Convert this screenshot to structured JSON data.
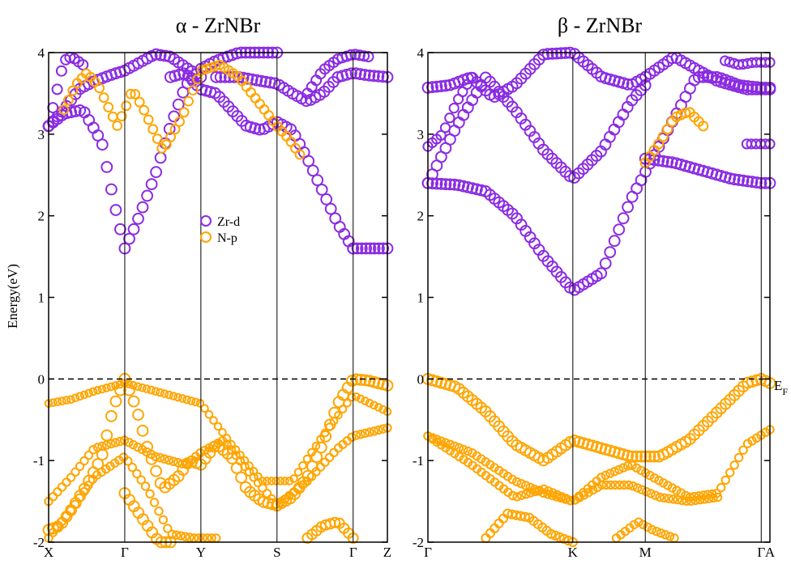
{
  "chart_data": [
    {
      "type": "scatter",
      "title": "α - ZrNBr",
      "ylabel": "Energy(eV)",
      "xlabel": "",
      "ylim": [
        -2,
        4
      ],
      "yticks": [
        -2,
        -1,
        0,
        1,
        2,
        3,
        4
      ],
      "fermi_level": 0,
      "grid": false,
      "kpath": [
        {
          "label": "X",
          "x": 0
        },
        {
          "label": "Γ",
          "x": 1
        },
        {
          "label": "Y",
          "x": 2
        },
        {
          "label": "S",
          "x": 3
        },
        {
          "label": "Γ",
          "x": 4
        },
        {
          "label": "Z",
          "x": 4.45
        }
      ],
      "legend": {
        "placement": "center",
        "entries": [
          {
            "label": "Zr-d",
            "color": "#8a2be2"
          },
          {
            "label": "N-p",
            "color": "#ffa500"
          }
        ]
      },
      "series": [
        {
          "name": "Zr-d",
          "color": "#8a2be2",
          "bands": [
            {
              "x": [
                0,
                0.2,
                0.45,
                0.7,
                0.85,
                1,
                1.15,
                1.4,
                1.6,
                1.8,
                2,
                2.2,
                2.5,
                2.8,
                3
              ],
              "y": [
                3.1,
                3.25,
                3.3,
                2.9,
                2.2,
                1.6,
                1.9,
                2.5,
                3.1,
                3.6,
                3.8,
                3.9,
                4.0,
                4.0,
                4.0
              ],
              "size": 1.0
            },
            {
              "x": [
                0,
                0.2,
                0.4,
                0.6,
                0.8,
                1,
                1.2,
                1.4,
                1.6,
                1.8,
                2
              ],
              "y": [
                3.1,
                3.3,
                3.55,
                3.65,
                3.72,
                3.78,
                3.88,
                3.98,
                3.95,
                3.82,
                3.7
              ],
              "size": 1.0
            },
            {
              "x": [
                1.6,
                1.8,
                2,
                2.2,
                2.4,
                2.6,
                2.8,
                3,
                3.2,
                3.4,
                3.6,
                3.8,
                4
              ],
              "y": [
                3.7,
                3.75,
                3.55,
                3.5,
                3.3,
                3.1,
                3.05,
                3.15,
                3.05,
                2.7,
                2.3,
                1.9,
                1.6
              ],
              "size": 1.0
            },
            {
              "x": [
                4,
                4.2,
                4.45
              ],
              "y": [
                1.6,
                1.6,
                1.6
              ],
              "size": 1.0
            },
            {
              "x": [
                2.2,
                2.5,
                2.8,
                3,
                3.2,
                3.4,
                3.6,
                3.8,
                4,
                4.2,
                4.45
              ],
              "y": [
                3.7,
                3.7,
                3.65,
                3.62,
                3.5,
                3.4,
                3.5,
                3.7,
                3.75,
                3.72,
                3.7
              ],
              "size": 1.0
            },
            {
              "x": [
                0,
                0.1,
                0.2,
                0.3,
                0.45
              ],
              "y": [
                3.1,
                3.5,
                3.9,
                3.95,
                3.85
              ],
              "size": 0.9
            },
            {
              "x": [
                3.4,
                3.6,
                3.8,
                4,
                4.2
              ],
              "y": [
                3.5,
                3.78,
                3.92,
                3.98,
                3.95
              ],
              "size": 0.9
            }
          ]
        },
        {
          "name": "N-p",
          "color": "#ffa500",
          "bands": [
            {
              "x": [
                0.2,
                0.35,
                0.5,
                0.65,
                0.8,
                0.9,
                1,
                1.1,
                1.25,
                1.5,
                1.75,
                2,
                2.25,
                2.5,
                2.75,
                3,
                3.15,
                3.3
              ],
              "y": [
                3.3,
                3.6,
                3.75,
                3.6,
                3.3,
                3.1,
                3.3,
                3.55,
                3.3,
                2.8,
                3.2,
                3.78,
                3.85,
                3.7,
                3.4,
                3.1,
                2.95,
                2.75
              ],
              "size": 0.75
            },
            {
              "x": [
                0,
                0.15,
                0.3,
                0.5,
                0.7,
                0.85,
                1,
                1.15,
                1.3,
                1.5,
                1.7,
                1.85,
                2,
                2.2,
                2.4,
                2.6,
                2.8,
                3
              ],
              "y": [
                -1.85,
                -1.8,
                -1.6,
                -1.3,
                -0.95,
                -0.35,
                0,
                -0.35,
                -0.85,
                -1.35,
                -1.2,
                -1.0,
                -1.05,
                -0.8,
                -0.95,
                -1.35,
                -1.5,
                -1.55
              ],
              "size": 1.0
            },
            {
              "x": [
                3,
                3.2,
                3.4,
                3.6,
                3.8,
                4,
                4.2,
                4.45
              ],
              "y": [
                -1.55,
                -1.45,
                -1.2,
                -0.8,
                -0.3,
                0,
                -0.02,
                -0.08
              ],
              "size": 1.0
            },
            {
              "x": [
                0,
                0.3,
                0.6,
                1,
                1.4,
                1.8,
                2,
                2.4,
                2.8,
                3.2,
                3.6,
                4,
                4.45
              ],
              "y": [
                -0.3,
                -0.25,
                -0.15,
                -0.05,
                -0.15,
                -0.25,
                -0.3,
                -0.8,
                -1.25,
                -1.25,
                -0.7,
                -0.2,
                -0.4
              ],
              "size": 0.5
            },
            {
              "x": [
                0,
                0.3,
                0.6,
                1,
                1.4,
                1.8,
                2,
                2.3,
                2.6,
                3,
                3.4,
                3.8,
                4,
                4.45
              ],
              "y": [
                -1.5,
                -1.2,
                -0.85,
                -0.75,
                -0.95,
                -1.05,
                -0.9,
                -0.75,
                -1.1,
                -1.55,
                -1.25,
                -0.85,
                -0.7,
                -0.6
              ],
              "size": 0.6
            },
            {
              "x": [
                0,
                0.3,
                0.6,
                1,
                1.3,
                1.6,
                1.9,
                2.2
              ],
              "y": [
                -1.95,
                -1.6,
                -1.2,
                -0.95,
                -1.35,
                -1.9,
                -1.95,
                -1.95
              ],
              "size": 0.6
            },
            {
              "x": [
                1,
                1.15,
                1.3,
                1.45,
                1.6
              ],
              "y": [
                -1.4,
                -1.6,
                -1.8,
                -2.0,
                -2.0
              ],
              "size": 1.0
            },
            {
              "x": [
                3.4,
                3.6,
                3.8,
                4
              ],
              "y": [
                -1.95,
                -1.8,
                -1.75,
                -1.95
              ],
              "size": 0.9
            }
          ]
        }
      ]
    },
    {
      "type": "scatter",
      "title": "β - ZrNBr",
      "ylabel": "",
      "xlabel": "",
      "ylim": [
        -2,
        4
      ],
      "yticks": [
        -2,
        -1,
        0,
        1,
        2,
        3,
        4
      ],
      "fermi_level": 0,
      "fermi_label": "E_F",
      "grid": false,
      "kpath": [
        {
          "label": "Γ",
          "x": 0
        },
        {
          "label": "K",
          "x": 1
        },
        {
          "label": "M",
          "x": 1.5
        },
        {
          "label": "Γ",
          "x": 2.3
        },
        {
          "label": "A",
          "x": 2.36
        }
      ],
      "series": [
        {
          "name": "Zr-d",
          "color": "#8a2be2",
          "bands": [
            {
              "x": [
                0,
                0.2,
                0.4,
                0.6,
                0.8,
                1,
                1.2,
                1.4,
                1.55,
                1.7,
                1.85,
                2,
                2.15,
                2.3,
                2.36
              ],
              "y": [
                2.4,
                2.38,
                2.3,
                2.0,
                1.5,
                1.08,
                1.3,
                2.2,
                2.7,
                3.2,
                3.7,
                3.7,
                3.6,
                3.57,
                3.57
              ],
              "size": 1.0
            },
            {
              "x": [
                0,
                0.2,
                0.4,
                0.6,
                0.8,
                1,
                1.2,
                1.4,
                1.5
              ],
              "y": [
                2.4,
                3.1,
                3.7,
                3.3,
                2.8,
                2.45,
                2.8,
                3.4,
                3.6
              ],
              "size": 1.0
            },
            {
              "x": [
                0,
                0.15,
                0.3,
                0.45,
                0.6,
                0.8,
                1,
                1.2,
                1.4,
                1.5,
                1.7,
                2,
                2.2,
                2.36
              ],
              "y": [
                3.57,
                3.6,
                3.7,
                3.45,
                3.6,
                3.98,
                4.0,
                3.7,
                3.6,
                3.7,
                3.95,
                3.65,
                3.55,
                3.55
              ],
              "size": 1.0
            },
            {
              "x": [
                1.5,
                1.7,
                1.9,
                2.1,
                2.3,
                2.36
              ],
              "y": [
                2.7,
                2.65,
                2.55,
                2.45,
                2.4,
                2.4
              ],
              "size": 1.0
            },
            {
              "x": [
                0,
                0.1,
                0.2,
                0.3
              ],
              "y": [
                2.85,
                3.0,
                3.4,
                3.7
              ],
              "size": 0.8
            },
            {
              "x": [
                2.05,
                2.15,
                2.25,
                2.36
              ],
              "y": [
                3.9,
                3.85,
                3.88,
                3.88
              ],
              "size": 0.8
            },
            {
              "x": [
                2.2,
                2.3,
                2.36
              ],
              "y": [
                2.88,
                2.88,
                2.88
              ],
              "size": 0.8
            }
          ]
        },
        {
          "name": "N-p",
          "color": "#ffa500",
          "bands": [
            {
              "x": [
                0,
                0.2,
                0.4,
                0.6,
                0.8,
                1,
                1.2,
                1.4,
                1.6,
                1.8,
                2,
                2.2,
                2.3,
                2.36
              ],
              "y": [
                0,
                -0.1,
                -0.4,
                -0.8,
                -1.0,
                -0.75,
                -0.85,
                -0.95,
                -0.95,
                -0.75,
                -0.4,
                -0.05,
                0,
                -0.05
              ],
              "size": 1.0
            },
            {
              "x": [
                1.5,
                1.6,
                1.7,
                1.8,
                1.9
              ],
              "y": [
                2.65,
                2.9,
                3.2,
                3.28,
                3.1
              ],
              "size": 0.8
            },
            {
              "x": [
                0,
                0.3,
                0.6,
                0.8,
                1,
                1.2,
                1.4,
                1.6,
                1.8,
                2,
                2.2,
                2.36
              ],
              "y": [
                -0.7,
                -0.9,
                -1.25,
                -1.4,
                -1.5,
                -1.2,
                -1.05,
                -1.25,
                -1.45,
                -1.4,
                -0.8,
                -0.62
              ],
              "size": 0.6
            },
            {
              "x": [
                0,
                0.3,
                0.6,
                0.8,
                1,
                1.2,
                1.4,
                1.6,
                1.8,
                2
              ],
              "y": [
                -0.7,
                -1.05,
                -1.45,
                -1.35,
                -1.5,
                -1.3,
                -1.3,
                -1.45,
                -1.5,
                -1.45
              ],
              "size": 0.6
            },
            {
              "x": [
                0.4,
                0.55,
                0.7,
                0.85,
                1
              ],
              "y": [
                -1.95,
                -1.65,
                -1.7,
                -1.9,
                -2.0
              ],
              "size": 0.7
            },
            {
              "x": [
                1.3,
                1.45,
                1.55,
                1.7
              ],
              "y": [
                -1.95,
                -1.75,
                -1.85,
                -1.95
              ],
              "size": 0.6
            }
          ]
        }
      ]
    }
  ]
}
